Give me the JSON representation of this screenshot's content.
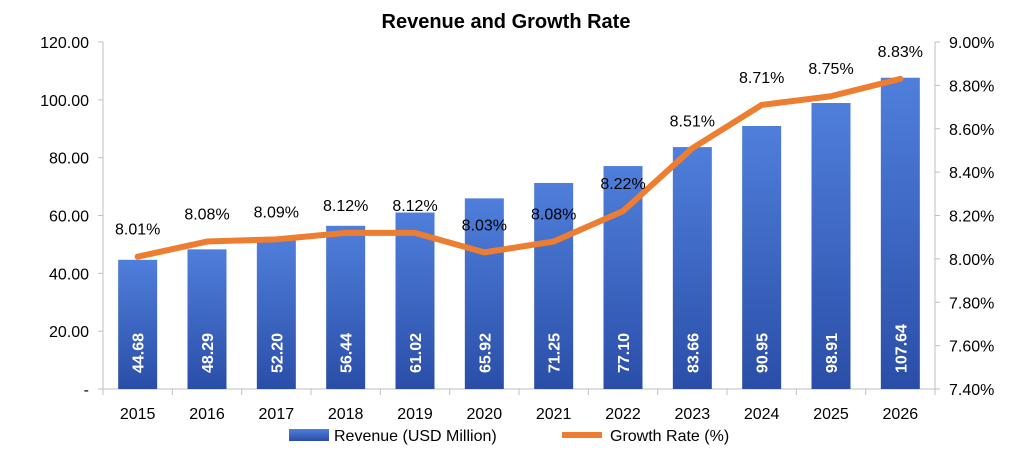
{
  "chart_data": {
    "type": "bar",
    "title": "Revenue and Growth Rate",
    "categories": [
      "2015",
      "2016",
      "2017",
      "2018",
      "2019",
      "2020",
      "2021",
      "2022",
      "2023",
      "2024",
      "2025",
      "2026"
    ],
    "series": [
      {
        "name": "Revenue (USD Million)",
        "type": "bar",
        "axis": "left",
        "values": [
          44.68,
          48.29,
          52.2,
          56.44,
          61.02,
          65.92,
          71.25,
          77.1,
          83.66,
          90.95,
          98.91,
          107.64
        ],
        "labels": [
          "44.68",
          "48.29",
          "52.20",
          "56.44",
          "61.02",
          "65.92",
          "71.25",
          "77.10",
          "83.66",
          "90.95",
          "98.91",
          "107.64"
        ],
        "color": "#3A66C7"
      },
      {
        "name": "Growth Rate (%)",
        "type": "line",
        "axis": "right",
        "values": [
          8.01,
          8.08,
          8.09,
          8.12,
          8.12,
          8.03,
          8.08,
          8.22,
          8.51,
          8.71,
          8.75,
          8.83
        ],
        "labels": [
          "8.01%",
          "8.08%",
          "8.09%",
          "8.12%",
          "8.12%",
          "8.03%",
          "8.08%",
          "8.22%",
          "8.51%",
          "8.71%",
          "8.75%",
          "8.83%"
        ],
        "color": "#ED7D31"
      }
    ],
    "y_left": {
      "ylim": [
        0,
        120
      ],
      "ticks": [
        0,
        20,
        40,
        60,
        80,
        100,
        120
      ],
      "tick_labels": [
        "-",
        "20.00",
        "40.00",
        "60.00",
        "80.00",
        "100.00",
        "120.00"
      ]
    },
    "y_right": {
      "ylim": [
        7.4,
        9.0
      ],
      "ticks": [
        7.4,
        7.6,
        7.8,
        8.0,
        8.2,
        8.4,
        8.6,
        8.8,
        9.0
      ],
      "tick_labels": [
        "7.40%",
        "7.60%",
        "7.80%",
        "8.00%",
        "8.20%",
        "8.40%",
        "8.60%",
        "8.80%",
        "9.00%"
      ]
    },
    "grid": false,
    "legend_position": "bottom"
  }
}
